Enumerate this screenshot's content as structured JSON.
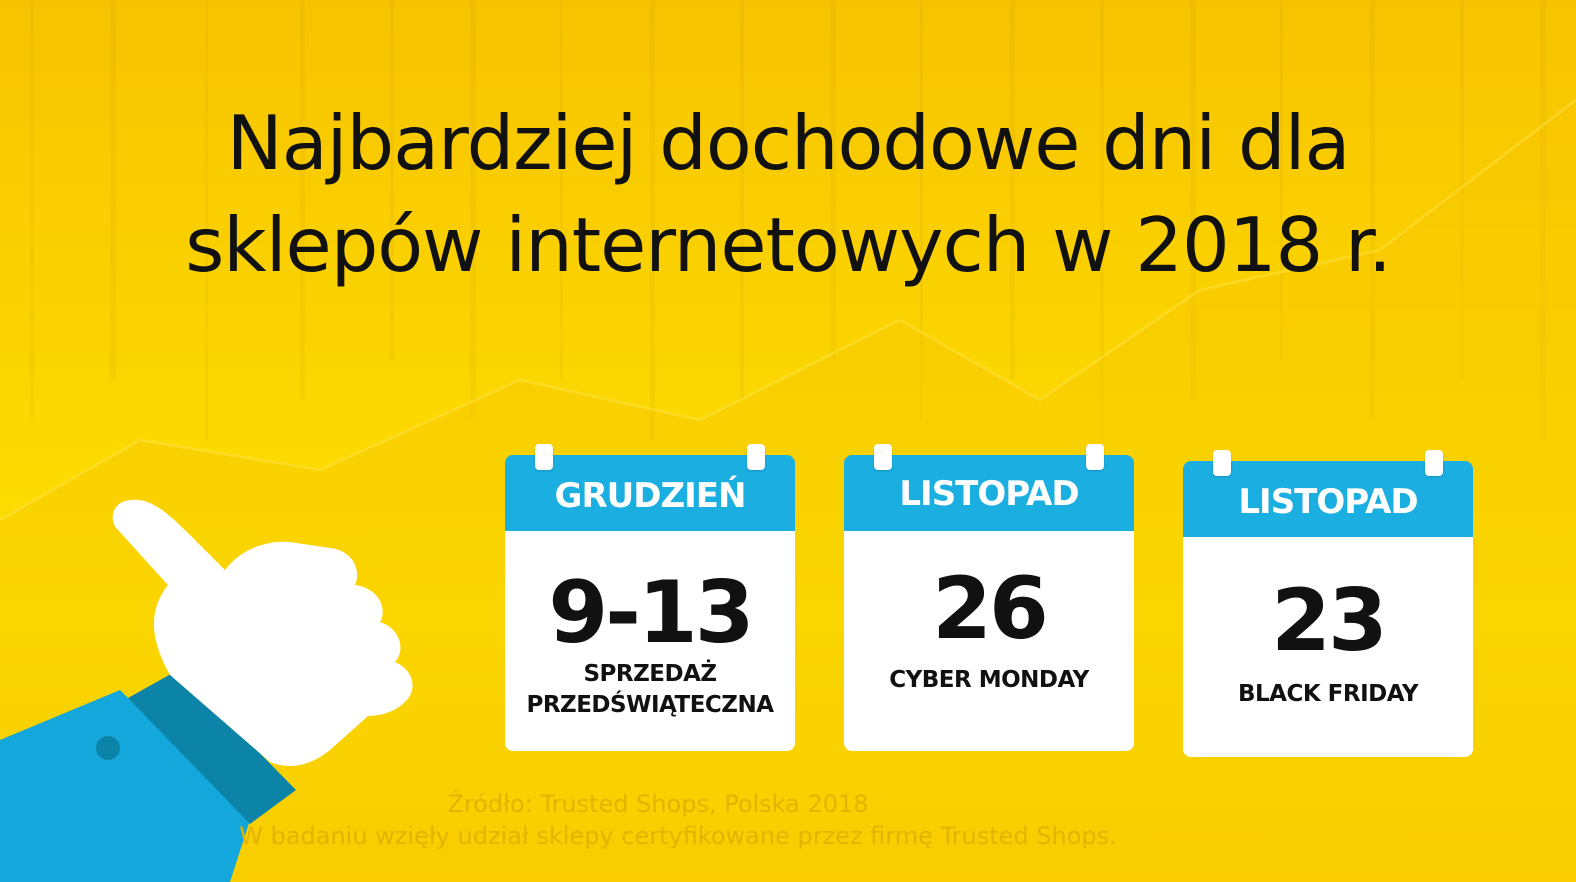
{
  "title": {
    "line1": "Najbardziej dochodowe dni dla",
    "line2": "sklepów internetowych w 2018 r."
  },
  "cards": [
    {
      "month": "GRUDZIEŃ",
      "day": "9-13",
      "label_line1": "SPRZEDAŻ",
      "label_line2": "PRZEDŚWIĄTECZNA"
    },
    {
      "month": "LISTOPAD",
      "day": "26",
      "label_line1": "CYBER MONDAY",
      "label_line2": ""
    },
    {
      "month": "LISTOPAD",
      "day": "23",
      "label_line1": "BLACK FRIDAY",
      "label_line2": ""
    }
  ],
  "source": {
    "line1": "Źródło: Trusted Shops, Polska 2018",
    "line2": "W badaniu wzięły udział sklepy certyfikowane przez firmę Trusted Shops."
  },
  "colors": {
    "background": "#fbd400",
    "calendar_header": "#1aaee1",
    "sleeve": "#14a7dc",
    "cuff": "#0b84a8",
    "hand": "#ffffff"
  },
  "icons": [
    "thumbs-up-hand-icon",
    "calendar-icon"
  ]
}
